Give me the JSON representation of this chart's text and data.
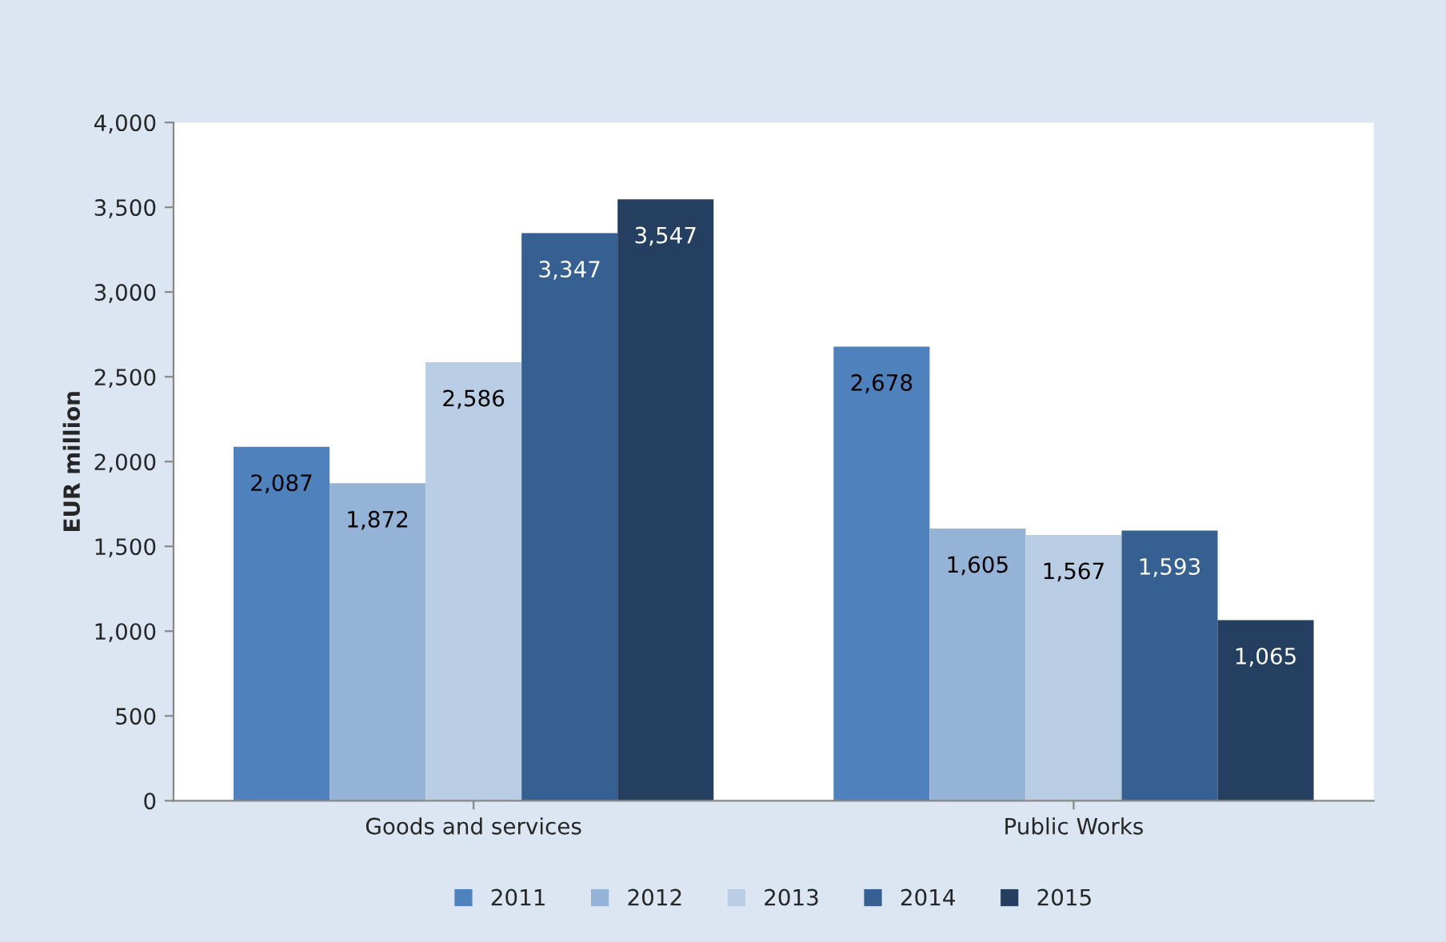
{
  "chart_data": {
    "type": "bar",
    "ylabel": "EUR million",
    "categories": [
      "Goods and services",
      "Public Works"
    ],
    "series": [
      {
        "name": "2011",
        "color": "#4f81bd",
        "values": [
          2087,
          2678
        ],
        "value_labels": [
          "2,087",
          "2,678"
        ]
      },
      {
        "name": "2012",
        "color": "#95b3d7",
        "values": [
          1872,
          1605
        ],
        "value_labels": [
          "1,872",
          "1,605"
        ]
      },
      {
        "name": "2013",
        "color": "#b9cde5",
        "values": [
          2586,
          1567
        ],
        "value_labels": [
          "2,586",
          "1,567"
        ]
      },
      {
        "name": "2014",
        "color": "#376092",
        "values": [
          3347,
          1593
        ],
        "value_labels": [
          "3,347",
          "1,593"
        ]
      },
      {
        "name": "2015",
        "color": "#243f60",
        "values": [
          3547,
          1065
        ],
        "value_labels": [
          "3,547",
          "1,065"
        ]
      }
    ],
    "ylim": [
      0,
      4000
    ],
    "yticks": [
      {
        "value": 0,
        "label": "0"
      },
      {
        "value": 500,
        "label": "500"
      },
      {
        "value": 1000,
        "label": "1,000"
      },
      {
        "value": 1500,
        "label": "1,500"
      },
      {
        "value": 2000,
        "label": "2,000"
      },
      {
        "value": 2500,
        "label": "2,500"
      },
      {
        "value": 3000,
        "label": "3,000"
      },
      {
        "value": 3500,
        "label": "3,500"
      },
      {
        "value": 4000,
        "label": "4,000"
      }
    ],
    "grid": false,
    "legend": "bottom"
  }
}
